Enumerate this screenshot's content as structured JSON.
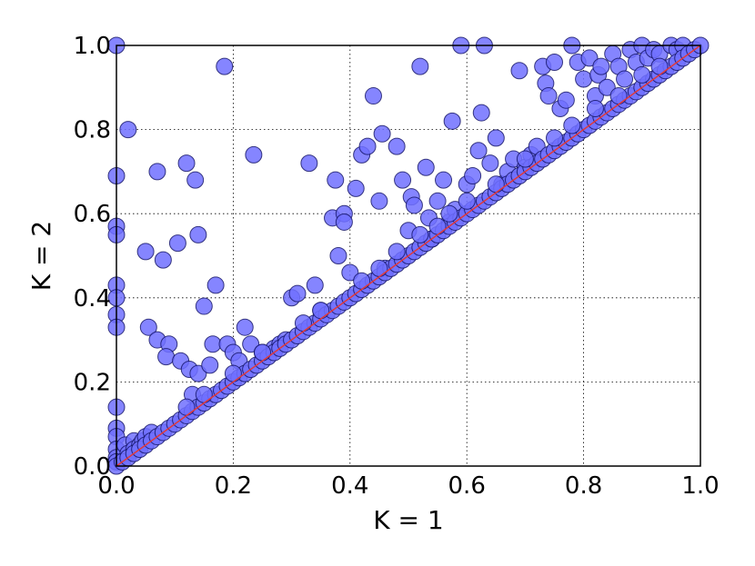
{
  "chart_data": {
    "type": "scatter",
    "xlabel": "K = 1",
    "ylabel": "K = 2",
    "xlim": [
      0.0,
      1.0
    ],
    "ylim": [
      0.0,
      1.0
    ],
    "xticks": [
      "0.0",
      "0.2",
      "0.4",
      "0.6",
      "0.8",
      "1.0"
    ],
    "yticks": [
      "0.0",
      "0.2",
      "0.4",
      "0.6",
      "0.8",
      "1.0"
    ],
    "grid": true,
    "marker_color": "#7070ff",
    "marker_edge_color": "#101060",
    "reference_line": {
      "type": "y = x",
      "color": "#e03a3a"
    },
    "points": [
      [
        0.0,
        1.0
      ],
      [
        0.0,
        0.69
      ],
      [
        0.0,
        0.57
      ],
      [
        0.0,
        0.55
      ],
      [
        0.0,
        0.43
      ],
      [
        0.0,
        0.4
      ],
      [
        0.0,
        0.36
      ],
      [
        0.0,
        0.33
      ],
      [
        0.0,
        0.14
      ],
      [
        0.0,
        0.09
      ],
      [
        0.0,
        0.07
      ],
      [
        0.0,
        0.04
      ],
      [
        0.0,
        0.02
      ],
      [
        0.0,
        0.01
      ],
      [
        0.02,
        0.8
      ],
      [
        0.015,
        0.05
      ],
      [
        0.02,
        0.03
      ],
      [
        0.03,
        0.06
      ],
      [
        0.03,
        0.04
      ],
      [
        0.04,
        0.05
      ],
      [
        0.045,
        0.06
      ],
      [
        0.05,
        0.07
      ],
      [
        0.06,
        0.08
      ],
      [
        0.07,
        0.7
      ],
      [
        0.05,
        0.51
      ],
      [
        0.08,
        0.49
      ],
      [
        0.105,
        0.53
      ],
      [
        0.12,
        0.72
      ],
      [
        0.135,
        0.68
      ],
      [
        0.14,
        0.55
      ],
      [
        0.15,
        0.38
      ],
      [
        0.055,
        0.33
      ],
      [
        0.07,
        0.3
      ],
      [
        0.09,
        0.29
      ],
      [
        0.085,
        0.26
      ],
      [
        0.11,
        0.25
      ],
      [
        0.125,
        0.23
      ],
      [
        0.13,
        0.17
      ],
      [
        0.14,
        0.22
      ],
      [
        0.16,
        0.24
      ],
      [
        0.165,
        0.29
      ],
      [
        0.17,
        0.43
      ],
      [
        0.185,
        0.95
      ],
      [
        0.19,
        0.29
      ],
      [
        0.2,
        0.27
      ],
      [
        0.21,
        0.25
      ],
      [
        0.22,
        0.33
      ],
      [
        0.23,
        0.29
      ],
      [
        0.235,
        0.74
      ],
      [
        0.25,
        0.27
      ],
      [
        0.27,
        0.28
      ],
      [
        0.28,
        0.29
      ],
      [
        0.29,
        0.3
      ],
      [
        0.3,
        0.4
      ],
      [
        0.31,
        0.41
      ],
      [
        0.33,
        0.72
      ],
      [
        0.34,
        0.43
      ],
      [
        0.35,
        0.37
      ],
      [
        0.37,
        0.59
      ],
      [
        0.375,
        0.68
      ],
      [
        0.38,
        0.5
      ],
      [
        0.39,
        0.6
      ],
      [
        0.39,
        0.58
      ],
      [
        0.4,
        0.46
      ],
      [
        0.41,
        0.66
      ],
      [
        0.42,
        0.74
      ],
      [
        0.43,
        0.76
      ],
      [
        0.44,
        0.88
      ],
      [
        0.45,
        0.63
      ],
      [
        0.455,
        0.79
      ],
      [
        0.46,
        0.47
      ],
      [
        0.48,
        0.76
      ],
      [
        0.49,
        0.68
      ],
      [
        0.5,
        0.56
      ],
      [
        0.505,
        0.64
      ],
      [
        0.51,
        0.62
      ],
      [
        0.52,
        0.95
      ],
      [
        0.53,
        0.71
      ],
      [
        0.535,
        0.59
      ],
      [
        0.54,
        0.54
      ],
      [
        0.55,
        0.63
      ],
      [
        0.56,
        0.68
      ],
      [
        0.57,
        0.58
      ],
      [
        0.575,
        0.82
      ],
      [
        0.58,
        0.61
      ],
      [
        0.59,
        1.0
      ],
      [
        0.6,
        0.67
      ],
      [
        0.61,
        0.69
      ],
      [
        0.62,
        0.75
      ],
      [
        0.625,
        0.84
      ],
      [
        0.63,
        1.0
      ],
      [
        0.64,
        0.72
      ],
      [
        0.65,
        0.78
      ],
      [
        0.66,
        0.67
      ],
      [
        0.67,
        0.7
      ],
      [
        0.68,
        0.73
      ],
      [
        0.69,
        0.94
      ],
      [
        0.7,
        0.71
      ],
      [
        0.71,
        0.74
      ],
      [
        0.72,
        0.76
      ],
      [
        0.73,
        0.95
      ],
      [
        0.735,
        0.91
      ],
      [
        0.74,
        0.88
      ],
      [
        0.75,
        0.96
      ],
      [
        0.76,
        0.85
      ],
      [
        0.77,
        0.87
      ],
      [
        0.78,
        1.0
      ],
      [
        0.79,
        0.96
      ],
      [
        0.8,
        0.92
      ],
      [
        0.81,
        0.97
      ],
      [
        0.82,
        0.88
      ],
      [
        0.825,
        0.93
      ],
      [
        0.83,
        0.95
      ],
      [
        0.84,
        0.9
      ],
      [
        0.85,
        0.98
      ],
      [
        0.86,
        0.95
      ],
      [
        0.87,
        0.92
      ],
      [
        0.88,
        0.99
      ],
      [
        0.89,
        0.96
      ],
      [
        0.9,
        1.0
      ],
      [
        0.91,
        0.97
      ],
      [
        0.92,
        0.99
      ],
      [
        0.93,
        0.98
      ],
      [
        0.95,
        1.0
      ],
      [
        0.96,
        0.99
      ],
      [
        0.97,
        1.0
      ],
      [
        0.0,
        0.0
      ],
      [
        0.01,
        0.01
      ],
      [
        0.02,
        0.02
      ],
      [
        0.03,
        0.03
      ],
      [
        0.04,
        0.04
      ],
      [
        0.05,
        0.05
      ],
      [
        0.06,
        0.06
      ],
      [
        0.07,
        0.07
      ],
      [
        0.08,
        0.08
      ],
      [
        0.09,
        0.09
      ],
      [
        0.1,
        0.1
      ],
      [
        0.11,
        0.11
      ],
      [
        0.12,
        0.12
      ],
      [
        0.13,
        0.13
      ],
      [
        0.14,
        0.14
      ],
      [
        0.15,
        0.15
      ],
      [
        0.16,
        0.16
      ],
      [
        0.17,
        0.17
      ],
      [
        0.18,
        0.18
      ],
      [
        0.19,
        0.19
      ],
      [
        0.2,
        0.2
      ],
      [
        0.21,
        0.21
      ],
      [
        0.22,
        0.22
      ],
      [
        0.23,
        0.23
      ],
      [
        0.24,
        0.24
      ],
      [
        0.25,
        0.25
      ],
      [
        0.26,
        0.26
      ],
      [
        0.27,
        0.27
      ],
      [
        0.28,
        0.28
      ],
      [
        0.29,
        0.29
      ],
      [
        0.3,
        0.3
      ],
      [
        0.31,
        0.31
      ],
      [
        0.32,
        0.32
      ],
      [
        0.33,
        0.33
      ],
      [
        0.34,
        0.34
      ],
      [
        0.35,
        0.35
      ],
      [
        0.36,
        0.36
      ],
      [
        0.37,
        0.37
      ],
      [
        0.38,
        0.38
      ],
      [
        0.39,
        0.39
      ],
      [
        0.4,
        0.4
      ],
      [
        0.41,
        0.41
      ],
      [
        0.42,
        0.42
      ],
      [
        0.43,
        0.43
      ],
      [
        0.44,
        0.44
      ],
      [
        0.45,
        0.45
      ],
      [
        0.46,
        0.46
      ],
      [
        0.47,
        0.47
      ],
      [
        0.48,
        0.48
      ],
      [
        0.49,
        0.49
      ],
      [
        0.5,
        0.5
      ],
      [
        0.51,
        0.51
      ],
      [
        0.52,
        0.52
      ],
      [
        0.53,
        0.53
      ],
      [
        0.54,
        0.54
      ],
      [
        0.55,
        0.55
      ],
      [
        0.56,
        0.56
      ],
      [
        0.57,
        0.57
      ],
      [
        0.58,
        0.58
      ],
      [
        0.59,
        0.59
      ],
      [
        0.6,
        0.6
      ],
      [
        0.61,
        0.61
      ],
      [
        0.62,
        0.62
      ],
      [
        0.63,
        0.63
      ],
      [
        0.64,
        0.64
      ],
      [
        0.65,
        0.65
      ],
      [
        0.66,
        0.66
      ],
      [
        0.67,
        0.67
      ],
      [
        0.68,
        0.68
      ],
      [
        0.69,
        0.69
      ],
      [
        0.7,
        0.7
      ],
      [
        0.71,
        0.71
      ],
      [
        0.72,
        0.72
      ],
      [
        0.73,
        0.73
      ],
      [
        0.74,
        0.74
      ],
      [
        0.75,
        0.75
      ],
      [
        0.76,
        0.76
      ],
      [
        0.77,
        0.77
      ],
      [
        0.78,
        0.78
      ],
      [
        0.79,
        0.79
      ],
      [
        0.8,
        0.8
      ],
      [
        0.81,
        0.81
      ],
      [
        0.82,
        0.82
      ],
      [
        0.83,
        0.83
      ],
      [
        0.84,
        0.84
      ],
      [
        0.85,
        0.85
      ],
      [
        0.86,
        0.86
      ],
      [
        0.87,
        0.87
      ],
      [
        0.88,
        0.88
      ],
      [
        0.89,
        0.89
      ],
      [
        0.9,
        0.9
      ],
      [
        0.91,
        0.91
      ],
      [
        0.92,
        0.92
      ],
      [
        0.93,
        0.93
      ],
      [
        0.94,
        0.94
      ],
      [
        0.95,
        0.95
      ],
      [
        0.96,
        0.96
      ],
      [
        0.97,
        0.97
      ],
      [
        0.98,
        0.98
      ],
      [
        0.99,
        0.99
      ],
      [
        1.0,
        1.0
      ],
      [
        0.12,
        0.14
      ],
      [
        0.15,
        0.17
      ],
      [
        0.2,
        0.22
      ],
      [
        0.25,
        0.27
      ],
      [
        0.32,
        0.34
      ],
      [
        0.35,
        0.37
      ],
      [
        0.42,
        0.44
      ],
      [
        0.45,
        0.47
      ],
      [
        0.48,
        0.51
      ],
      [
        0.52,
        0.55
      ],
      [
        0.55,
        0.57
      ],
      [
        0.57,
        0.6
      ],
      [
        0.6,
        0.63
      ],
      [
        0.65,
        0.67
      ],
      [
        0.7,
        0.73
      ],
      [
        0.75,
        0.78
      ],
      [
        0.78,
        0.81
      ],
      [
        0.82,
        0.85
      ],
      [
        0.86,
        0.88
      ],
      [
        0.9,
        0.93
      ],
      [
        0.93,
        0.95
      ]
    ]
  }
}
